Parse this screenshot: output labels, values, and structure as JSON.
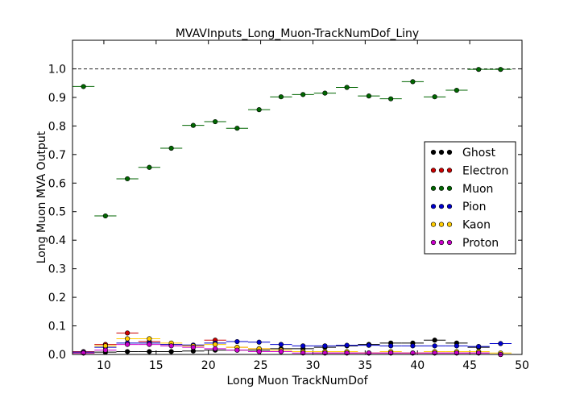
{
  "chart_data": {
    "type": "scatter",
    "title": "MVAVInputs_Long_Muon-TrackNumDof_Liny",
    "xlabel": "Long Muon TrackNumDof",
    "ylabel": "Long Muon MVA Output",
    "xlim": [
      7,
      50
    ],
    "ylim": [
      0,
      1.1
    ],
    "x_ticks": [
      10,
      15,
      20,
      25,
      30,
      35,
      40,
      45,
      50
    ],
    "y_ticks": [
      0.0,
      0.1,
      0.2,
      0.3,
      0.4,
      0.5,
      0.6,
      0.7,
      0.8,
      0.9,
      1.0
    ],
    "reference_line": 1.0,
    "legend_position": "center-right",
    "bin_half_width": 1.05,
    "x": [
      8.05,
      10.15,
      12.25,
      14.35,
      16.45,
      18.55,
      20.65,
      22.75,
      24.85,
      26.95,
      29.05,
      31.15,
      33.25,
      35.35,
      37.45,
      39.55,
      41.65,
      43.75,
      45.85,
      47.95
    ],
    "series": [
      {
        "name": "Ghost",
        "color": "#000000",
        "values": [
          0.005,
          0.008,
          0.01,
          0.01,
          0.01,
          0.012,
          0.015,
          0.015,
          0.015,
          0.02,
          0.02,
          0.025,
          0.03,
          0.035,
          0.04,
          0.04,
          0.05,
          0.04,
          0.025,
          0.0
        ]
      },
      {
        "name": "Electron",
        "color": "#cc0000",
        "values": [
          0.01,
          0.035,
          0.075,
          0.045,
          0.035,
          0.03,
          0.05,
          0.025,
          0.02,
          0.01,
          0.01,
          0.005,
          0.005,
          0.005,
          0.005,
          0.005,
          0.005,
          0.005,
          0.005,
          0.0
        ]
      },
      {
        "name": "Muon",
        "color": "#006600",
        "values": [
          0.938,
          0.485,
          0.615,
          0.655,
          0.722,
          0.802,
          0.815,
          0.792,
          0.857,
          0.902,
          0.91,
          0.915,
          0.935,
          0.905,
          0.895,
          0.955,
          0.902,
          0.925,
          0.998,
          0.998
        ]
      },
      {
        "name": "Pion",
        "color": "#0000cc",
        "values": [
          0.008,
          0.025,
          0.04,
          0.04,
          0.035,
          0.033,
          0.04,
          0.045,
          0.043,
          0.035,
          0.03,
          0.03,
          0.032,
          0.032,
          0.03,
          0.03,
          0.03,
          0.03,
          0.028,
          0.038
        ]
      },
      {
        "name": "Kaon",
        "color": "#ffcc00",
        "values": [
          0.005,
          0.03,
          0.055,
          0.055,
          0.04,
          0.03,
          0.035,
          0.025,
          0.02,
          0.015,
          0.01,
          0.01,
          0.01,
          0.005,
          0.01,
          0.005,
          0.01,
          0.01,
          0.01,
          0.005
        ]
      },
      {
        "name": "Proton",
        "color": "#cc00cc",
        "values": [
          0.005,
          0.015,
          0.035,
          0.035,
          0.03,
          0.025,
          0.02,
          0.015,
          0.01,
          0.01,
          0.005,
          0.005,
          0.005,
          0.005,
          0.005,
          0.005,
          0.005,
          0.005,
          0.005,
          0.0
        ]
      }
    ]
  }
}
